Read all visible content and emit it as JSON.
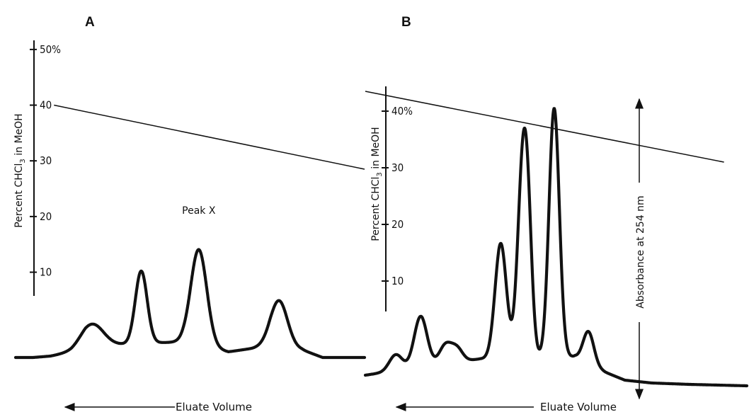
{
  "chart_data": [
    {
      "panel": "A",
      "type": "line",
      "ylabel": "Percent CHCl3 in MeOH",
      "xlabel": "Eluate Volume",
      "y_ticks": [
        {
          "value": 50,
          "label": "50%"
        },
        {
          "value": 40,
          "label": "40"
        },
        {
          "value": 30,
          "label": "30"
        },
        {
          "value": 20,
          "label": "20"
        },
        {
          "value": 10,
          "label": "10"
        }
      ],
      "ylim": [
        6,
        51
      ],
      "xlim": [
        0,
        100
      ],
      "gradient": {
        "x": [
          11,
          100
        ],
        "y": [
          40,
          28.5
        ]
      },
      "annotations": [
        {
          "text": "Peak X",
          "x": 52.5
        }
      ],
      "chromatogram_peaks": [
        {
          "x": 22,
          "height": 0.15,
          "width": 3.2
        },
        {
          "x": 36,
          "height": 0.5,
          "width": 1.7
        },
        {
          "x": 52.5,
          "height": 0.66,
          "width": 2.3
        },
        {
          "x": 75.5,
          "height": 0.31,
          "width": 2.4
        }
      ]
    },
    {
      "panel": "B",
      "type": "line",
      "ylabel": "Percent CHCl3 in MeOH",
      "xlabel": "Eluate Volume",
      "y2label": "Absorbance at 254 nm",
      "y_ticks": [
        {
          "value": 40,
          "label": "40%"
        },
        {
          "value": 30,
          "label": "30"
        },
        {
          "value": 20,
          "label": "20"
        },
        {
          "value": 10,
          "label": "10"
        }
      ],
      "ylim": [
        5,
        44
      ],
      "xlim": [
        0,
        100
      ],
      "gradient": {
        "x": [
          0,
          94
        ],
        "y": [
          43.5,
          31
        ]
      },
      "chromatogram_peaks": [
        {
          "x": 8,
          "height": 0.06,
          "width": 1.7
        },
        {
          "x": 14.5,
          "height": 0.19,
          "width": 1.7
        },
        {
          "x": 21,
          "height": 0.07,
          "width": 1.6
        },
        {
          "x": 24,
          "height": 0.05,
          "width": 1.5
        },
        {
          "x": 35.5,
          "height": 0.43,
          "width": 1.5
        },
        {
          "x": 41.5,
          "height": 0.79,
          "width": 1.45
        },
        {
          "x": 42.8,
          "height": 0.14,
          "width": 1.0
        },
        {
          "x": 49.5,
          "height": 0.93,
          "width": 1.35
        },
        {
          "x": 58.5,
          "height": 0.12,
          "width": 1.4
        }
      ]
    }
  ]
}
